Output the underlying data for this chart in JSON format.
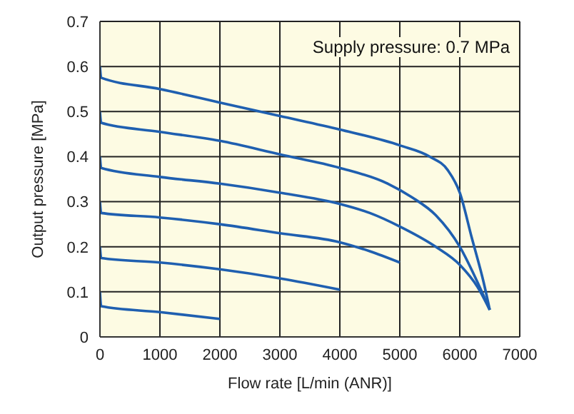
{
  "chart_data": {
    "type": "line",
    "xlabel": "Flow rate [L/min (ANR)]",
    "ylabel": "Output pressure [MPa]",
    "annotations": [
      "Supply pressure: 0.7 MPa"
    ],
    "xlim": [
      0,
      7000
    ],
    "xticks": [
      0,
      1000,
      2000,
      3000,
      4000,
      5000,
      6000,
      7000
    ],
    "ylim": [
      0,
      0.7
    ],
    "yticks": [
      0,
      0.1,
      0.2,
      0.3,
      0.4,
      0.5,
      0.6,
      0.7
    ],
    "grid": true,
    "marker": "none",
    "line_style": "solid",
    "series": [
      {
        "color": "#1f5fb0",
        "x": [
          0,
          20,
          1000,
          2000,
          3000,
          4000,
          5000,
          5500,
          5800,
          6000,
          6200,
          6400,
          6500
        ],
        "values": [
          0.6,
          0.575,
          0.55,
          0.52,
          0.49,
          0.46,
          0.425,
          0.4,
          0.37,
          0.32,
          0.22,
          0.12,
          0.06
        ]
      },
      {
        "color": "#1f5fb0",
        "x": [
          0,
          20,
          1000,
          2000,
          3000,
          4000,
          4800,
          5200,
          5600,
          6000,
          6300,
          6500
        ],
        "values": [
          0.5,
          0.475,
          0.455,
          0.435,
          0.405,
          0.375,
          0.34,
          0.31,
          0.27,
          0.2,
          0.12,
          0.06
        ]
      },
      {
        "color": "#1f5fb0",
        "x": [
          0,
          20,
          1000,
          2000,
          3000,
          4000,
          4500,
          5000,
          5600,
          6000,
          6300,
          6500
        ],
        "values": [
          0.4,
          0.375,
          0.355,
          0.34,
          0.32,
          0.295,
          0.275,
          0.245,
          0.2,
          0.16,
          0.11,
          0.06
        ]
      },
      {
        "color": "#1f5fb0",
        "x": [
          0,
          20,
          1000,
          2000,
          3000,
          4000,
          4500,
          5000
        ],
        "values": [
          0.3,
          0.275,
          0.265,
          0.25,
          0.23,
          0.21,
          0.19,
          0.165
        ]
      },
      {
        "color": "#1f5fb0",
        "x": [
          0,
          20,
          1000,
          2000,
          3000,
          4000
        ],
        "values": [
          0.2,
          0.175,
          0.165,
          0.15,
          0.13,
          0.105
        ]
      },
      {
        "color": "#1f5fb0",
        "x": [
          0,
          20,
          1000,
          2000
        ],
        "values": [
          0.1,
          0.068,
          0.055,
          0.04
        ]
      }
    ]
  }
}
